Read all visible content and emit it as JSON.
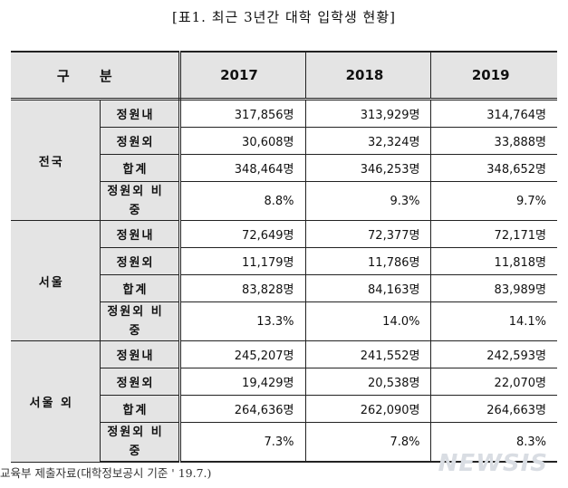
{
  "title": "[표1. 최근 3년간 대학 입학생 현황]",
  "header": {
    "category": "구 분",
    "years": [
      "2017",
      "2018",
      "2019"
    ]
  },
  "groups": [
    {
      "name": "전국",
      "rows": [
        {
          "label": "정원내",
          "values": [
            "317,856명",
            "313,929명",
            "314,764명"
          ]
        },
        {
          "label": "정원외",
          "values": [
            "30,608명",
            "32,324명",
            "33,888명"
          ]
        },
        {
          "label": "합계",
          "values": [
            "348,464명",
            "346,253명",
            "348,652명"
          ]
        },
        {
          "label": "정원외 비중",
          "values": [
            "8.8%",
            "9.3%",
            "9.7%"
          ]
        }
      ]
    },
    {
      "name": "서울",
      "rows": [
        {
          "label": "정원내",
          "values": [
            "72,649명",
            "72,377명",
            "72,171명"
          ]
        },
        {
          "label": "정원외",
          "values": [
            "11,179명",
            "11,786명",
            "11,818명"
          ]
        },
        {
          "label": "합계",
          "values": [
            "83,828명",
            "84,163명",
            "83,989명"
          ]
        },
        {
          "label": "정원외 비중",
          "values": [
            "13.3%",
            "14.0%",
            "14.1%"
          ]
        }
      ]
    },
    {
      "name": "서울 외",
      "rows": [
        {
          "label": "정원내",
          "values": [
            "245,207명",
            "241,552명",
            "242,593명"
          ]
        },
        {
          "label": "정원외",
          "values": [
            "19,429명",
            "20,538명",
            "22,070명"
          ]
        },
        {
          "label": "합계",
          "values": [
            "264,636명",
            "262,090명",
            "264,663명"
          ]
        },
        {
          "label": "정원외 비중",
          "values": [
            "7.3%",
            "7.8%",
            "8.3%"
          ]
        }
      ]
    }
  ],
  "footer": "교육부 제출자료(대학정보공시 기준 ' 19.7.)",
  "watermark": "NEWSIS"
}
